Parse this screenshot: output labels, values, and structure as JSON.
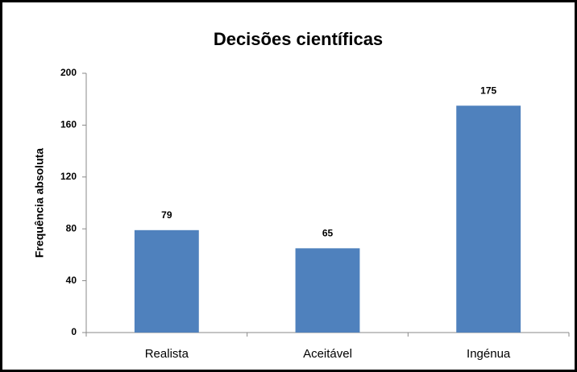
{
  "chart_data": {
    "type": "bar",
    "title": "Decisões científicas",
    "y_label": "Frequência absoluta",
    "categories": [
      "Realista",
      "Aceitável",
      "Ingénua"
    ],
    "values": [
      79,
      65,
      175
    ],
    "color": "#4f81bd",
    "ylim": [
      0,
      200
    ],
    "yticks": [
      0,
      40,
      80,
      120,
      160,
      200
    ],
    "grid": false,
    "data_labels": true
  }
}
